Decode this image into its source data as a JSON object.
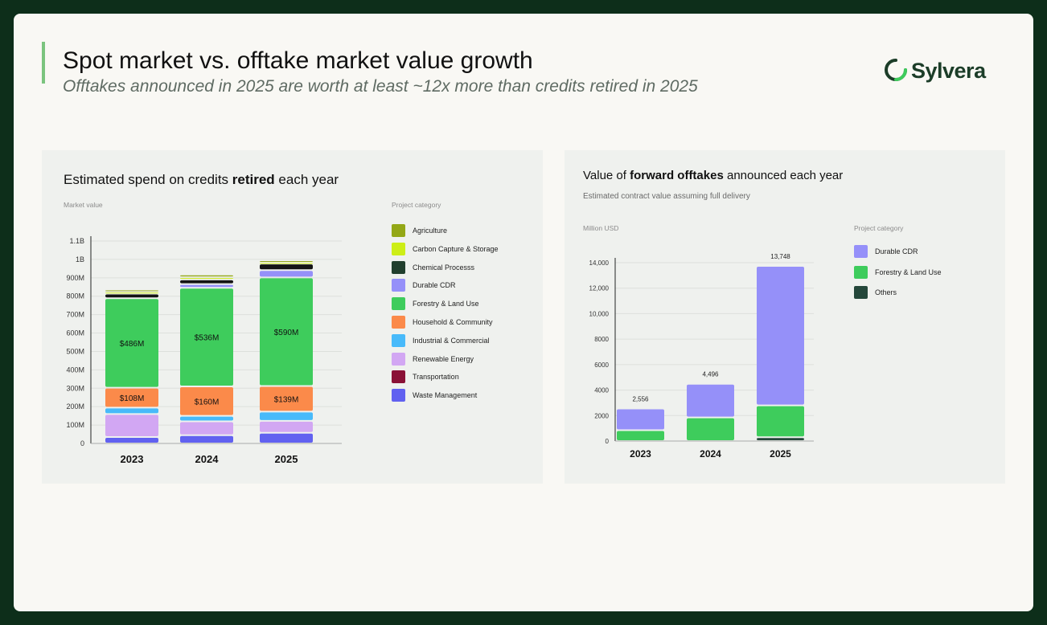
{
  "header": {
    "title": "Spot market vs. offtake market value growth",
    "subtitle": "Offtakes announced in 2025 are worth at least ~12x more than credits retired in 2025",
    "logo_text": "Sylvera"
  },
  "colors": {
    "accent": "#7bc47e",
    "Agriculture": "#93a716",
    "Carbon Capture & Storage": "#cdee17",
    "Chemical Processs": "#213f2e",
    "Durable CDR": "#9590f9",
    "Forestry & Land Use": "#3ecc5c",
    "Household & Community": "#fb8a4a",
    "Industrial & Commercial": "#48bafa",
    "Renewable Energy": "#d2a7f3",
    "Transportation": "#8a1136",
    "Waste Management": "#6161f0",
    "Others": "#24473a",
    "Black": "#141414"
  },
  "chart_data": [
    {
      "type": "bar",
      "stacked": true,
      "title_pre": "Estimated spend on credits ",
      "title_bold": "retired",
      "title_post": " each year",
      "ylabel": "Market value",
      "legend_title": "Project category",
      "categories": [
        "2023",
        "2024",
        "2025"
      ],
      "ylim": [
        0,
        1100
      ],
      "yticks": [
        "0",
        "100M",
        "200M",
        "300M",
        "400M",
        "500M",
        "600M",
        "700M",
        "800M",
        "900M",
        "1B",
        "1.1B"
      ],
      "legend": [
        "Agriculture",
        "Carbon Capture & Storage",
        "Chemical Processs",
        "Durable CDR",
        "Forestry & Land Use",
        "Household & Community",
        "Industrial & Commercial",
        "Renewable Energy",
        "Transportation",
        "Waste Management"
      ],
      "series": [
        {
          "name": "Waste Management",
          "color_key": "Waste Management",
          "values": [
            35,
            45,
            58
          ]
        },
        {
          "name": "Renewable Energy",
          "color_key": "Renewable Energy",
          "values": [
            125,
            75,
            65
          ]
        },
        {
          "name": "Industrial & Commercial",
          "color_key": "Industrial & Commercial",
          "values": [
            35,
            30,
            50
          ]
        },
        {
          "name": "Household & Community",
          "color_key": "Household & Community",
          "values": [
            108,
            160,
            139
          ],
          "labels": [
            "$108M",
            "$160M",
            "$139M"
          ]
        },
        {
          "name": "Forestry & Land Use",
          "color_key": "Forestry & Land Use",
          "values": [
            486,
            536,
            590
          ],
          "labels": [
            "$486M",
            "$536M",
            "$590M"
          ]
        },
        {
          "name": "Durable CDR",
          "color_key": "Durable CDR",
          "values": [
            0,
            20,
            40
          ]
        },
        {
          "name": "Chemical Processs",
          "color_key": "Black",
          "values": [
            25,
            25,
            35
          ]
        },
        {
          "name": "Carbon Capture & Storage",
          "color_key": "Carbon Capture & Storage",
          "values": [
            10,
            12,
            8
          ]
        },
        {
          "name": "Agriculture",
          "color_key": "Agriculture",
          "values": [
            12,
            15,
            10
          ]
        }
      ]
    },
    {
      "type": "bar",
      "stacked": true,
      "title_pre": "Value of ",
      "title_bold": "forward offtakes",
      "title_post": " announced each year",
      "subtitle": "Estimated contract value assuming full delivery",
      "ylabel": "Million USD",
      "legend_title": "Project category",
      "categories": [
        "2023",
        "2024",
        "2025"
      ],
      "ylim": [
        0,
        14000
      ],
      "yticks": [
        "0",
        "2000",
        "4000",
        "6000",
        "8000",
        "10,000",
        "12,000",
        "14,000"
      ],
      "totals": [
        "2,556",
        "4,496",
        "13,748"
      ],
      "legend": [
        "Durable CDR",
        "Forestry & Land Use",
        "Others"
      ],
      "series": [
        {
          "name": "Others",
          "color_key": "Others",
          "values": [
            0,
            0,
            300
          ]
        },
        {
          "name": "Forestry & Land Use",
          "color_key": "Forestry & Land Use",
          "values": [
            850,
            1850,
            2500
          ]
        },
        {
          "name": "Durable CDR",
          "color_key": "Durable CDR",
          "values": [
            1706,
            2646,
            10948
          ]
        }
      ]
    }
  ]
}
